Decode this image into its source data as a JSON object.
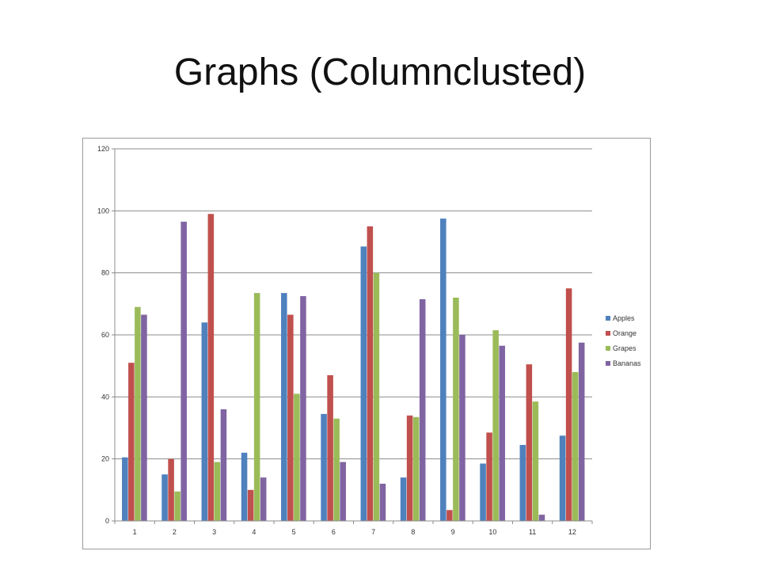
{
  "slide": {
    "title": "Graphs (Columnclusted)"
  },
  "chart_data": {
    "type": "bar",
    "categories": [
      "1",
      "2",
      "3",
      "4",
      "5",
      "6",
      "7",
      "8",
      "9",
      "10",
      "11",
      "12"
    ],
    "series": [
      {
        "name": "Apples",
        "color": "#4f81bd",
        "values": [
          20.5,
          15,
          64,
          22,
          73.5,
          34.5,
          88.5,
          14,
          97.5,
          18.5,
          24.5,
          27.5
        ]
      },
      {
        "name": "Orange",
        "color": "#c0504d",
        "values": [
          51,
          20,
          99,
          10,
          66.5,
          47,
          95,
          34,
          3.5,
          28.5,
          50.5,
          75
        ]
      },
      {
        "name": "Grapes",
        "color": "#9bbb59",
        "values": [
          69,
          9.5,
          19,
          73.5,
          41,
          33,
          80,
          33.5,
          72,
          61.5,
          38.5,
          48
        ]
      },
      {
        "name": "Bananas",
        "color": "#8064a2",
        "values": [
          66.5,
          96.5,
          36,
          14,
          72.5,
          19,
          12,
          71.5,
          60,
          56.5,
          2,
          57.5
        ]
      }
    ],
    "ylim": [
      0,
      120
    ],
    "yticks": [
      "0",
      "20",
      "40",
      "60",
      "80",
      "100",
      "120"
    ],
    "grid": true,
    "legend_position": "right",
    "title": "",
    "xlabel": "",
    "ylabel": ""
  }
}
